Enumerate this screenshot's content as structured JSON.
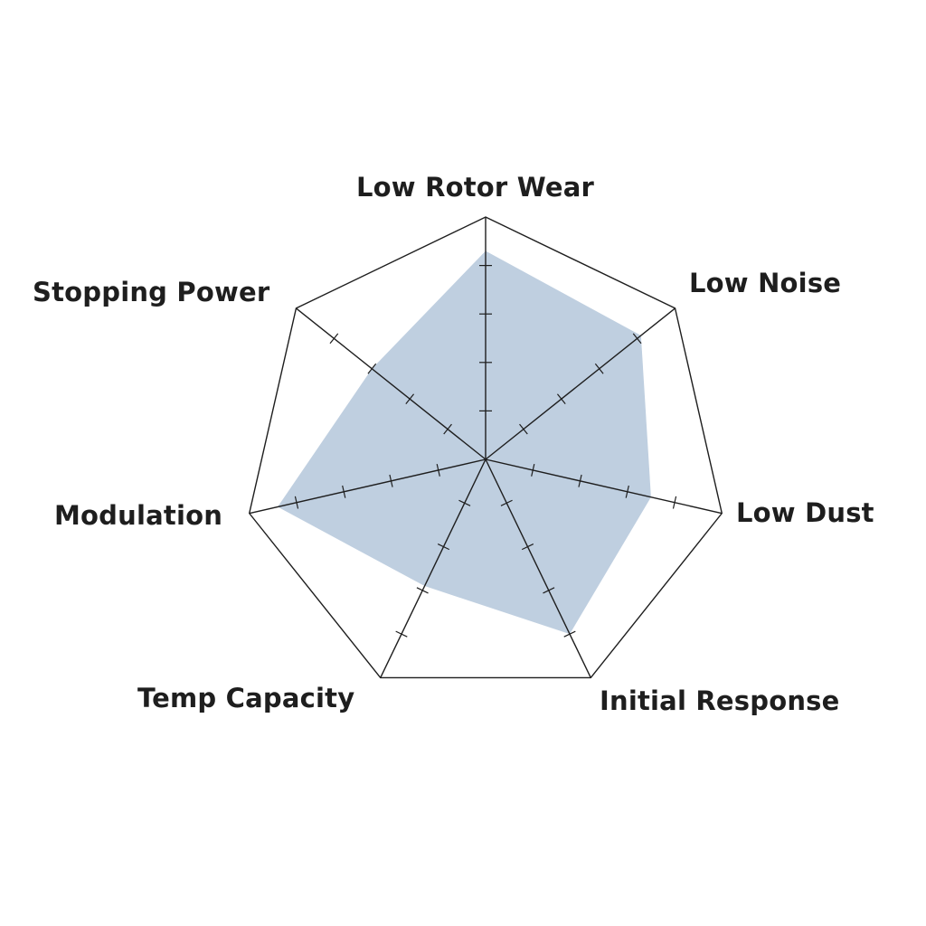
{
  "chart_data": {
    "type": "radar",
    "categories": [
      "Low Rotor Wear",
      "Low Noise",
      "Low Dust",
      "Initial Response",
      "Temp Capacity",
      "Modulation",
      "Stopping Power"
    ],
    "values": [
      4.3,
      4.1,
      3.5,
      4.0,
      2.9,
      4.4,
      3.0
    ],
    "range": [
      0,
      5
    ],
    "ticks": [
      1,
      2,
      3,
      4
    ],
    "fill_color": "#bfcfe0",
    "line_color": "#1e1e1e"
  }
}
